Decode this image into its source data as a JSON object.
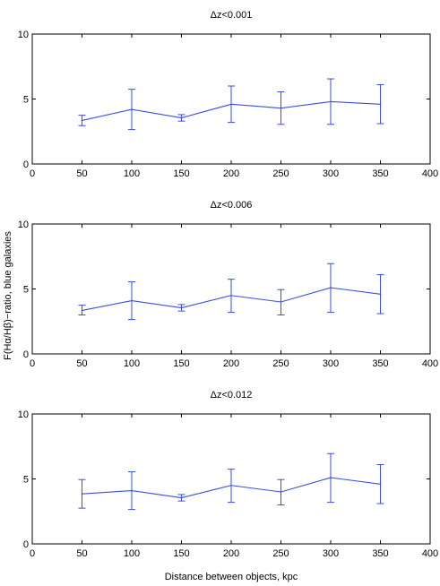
{
  "figure": {
    "ylabel": "F(Hα/Hβ)−ratio, blue galaxies",
    "xlabel": "Distance between objects, kpc"
  },
  "colors": {
    "series": "#3a4ee0",
    "axes": "#000000"
  },
  "chart_data": [
    {
      "type": "line",
      "title": "Δz<0.001",
      "xlim": [
        0,
        400
      ],
      "ylim": [
        0,
        10
      ],
      "xticks": [
        0,
        50,
        100,
        150,
        200,
        250,
        300,
        350,
        400
      ],
      "yticks": [
        0,
        5,
        10
      ],
      "x": [
        50,
        100,
        150,
        200,
        250,
        300,
        350
      ],
      "y": [
        3.35,
        4.2,
        3.55,
        4.6,
        4.3,
        4.8,
        4.6
      ],
      "err_low": [
        2.95,
        2.65,
        3.3,
        3.2,
        3.05,
        3.05,
        3.1
      ],
      "err_high": [
        3.75,
        5.75,
        3.8,
        6.0,
        5.55,
        6.55,
        6.1
      ]
    },
    {
      "type": "line",
      "title": "Δz<0.006",
      "xlim": [
        0,
        400
      ],
      "ylim": [
        0,
        10
      ],
      "xticks": [
        0,
        50,
        100,
        150,
        200,
        250,
        300,
        350,
        400
      ],
      "yticks": [
        0,
        5,
        10
      ],
      "x": [
        50,
        100,
        150,
        200,
        250,
        300,
        350
      ],
      "y": [
        3.35,
        4.1,
        3.55,
        4.5,
        4.0,
        5.1,
        4.6
      ],
      "err_low": [
        3.0,
        2.65,
        3.3,
        3.2,
        3.0,
        3.2,
        3.1
      ],
      "err_high": [
        3.75,
        5.55,
        3.8,
        5.75,
        4.95,
        6.95,
        6.1
      ]
    },
    {
      "type": "line",
      "title": "Δz<0.012",
      "xlim": [
        0,
        400
      ],
      "ylim": [
        0,
        10
      ],
      "xticks": [
        0,
        50,
        100,
        150,
        200,
        250,
        300,
        350,
        400
      ],
      "yticks": [
        0,
        5,
        10
      ],
      "x": [
        50,
        100,
        150,
        200,
        250,
        300,
        350
      ],
      "y": [
        3.85,
        4.1,
        3.55,
        4.5,
        4.0,
        5.1,
        4.6
      ],
      "err_low": [
        2.75,
        2.65,
        3.3,
        3.2,
        3.0,
        3.2,
        3.1
      ],
      "err_high": [
        4.95,
        5.55,
        3.8,
        5.75,
        4.95,
        6.95,
        6.1
      ]
    }
  ]
}
